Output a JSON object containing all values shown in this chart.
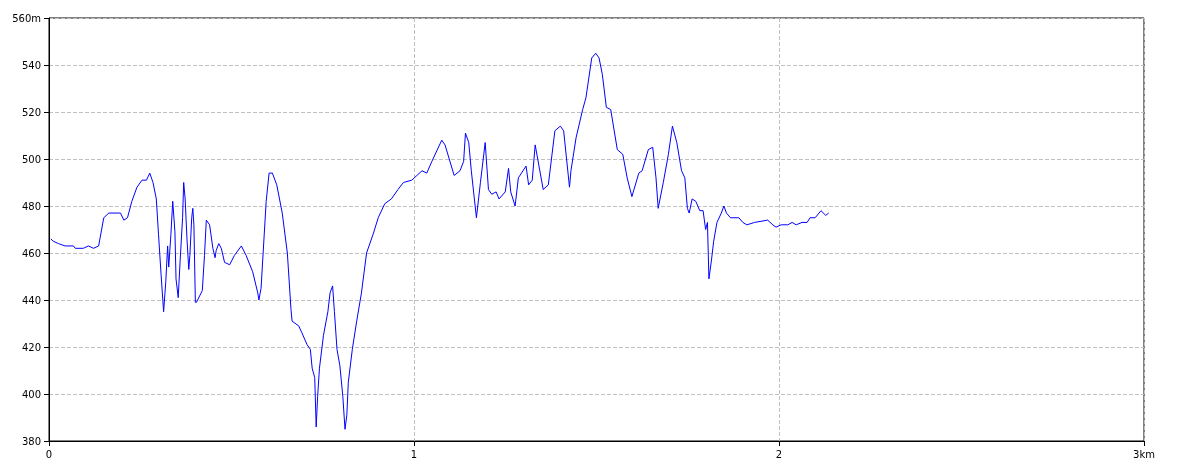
{
  "chart_data": {
    "type": "line",
    "x": [
      0.005,
      0.012,
      0.026,
      0.044,
      0.067,
      0.072,
      0.094,
      0.108,
      0.122,
      0.136,
      0.15,
      0.164,
      0.196,
      0.205,
      0.215,
      0.227,
      0.241,
      0.255,
      0.267,
      0.276,
      0.285,
      0.294,
      0.3,
      0.307,
      0.314,
      0.32,
      0.325,
      0.328,
      0.334,
      0.339,
      0.345,
      0.348,
      0.354,
      0.359,
      0.366,
      0.369,
      0.373,
      0.378,
      0.383,
      0.386,
      0.391,
      0.394,
      0.397,
      0.401,
      0.404,
      0.42,
      0.426,
      0.431,
      0.44,
      0.449,
      0.455,
      0.458,
      0.465,
      0.472,
      0.481,
      0.495,
      0.508,
      0.527,
      0.54,
      0.558,
      0.572,
      0.575,
      0.581,
      0.595,
      0.603,
      0.612,
      0.624,
      0.639,
      0.653,
      0.663,
      0.666,
      0.684,
      0.693,
      0.707,
      0.716,
      0.721,
      0.728,
      0.732,
      0.736,
      0.741,
      0.752,
      0.764,
      0.77,
      0.777,
      0.782,
      0.789,
      0.797,
      0.805,
      0.811,
      0.816,
      0.82,
      0.831,
      0.843,
      0.856,
      0.87,
      0.888,
      0.902,
      0.92,
      0.938,
      0.956,
      0.971,
      0.994,
      1.008,
      1.022,
      1.035,
      1.049,
      1.076,
      1.085,
      1.11,
      1.126,
      1.136,
      1.141,
      1.15,
      1.157,
      1.171,
      1.182,
      1.195,
      1.204,
      1.213,
      1.225,
      1.233,
      1.25,
      1.259,
      1.265,
      1.277,
      1.286,
      1.307,
      1.314,
      1.324,
      1.332,
      1.354,
      1.368,
      1.386,
      1.401,
      1.41,
      1.426,
      1.43,
      1.444,
      1.462,
      1.471,
      1.487,
      1.498,
      1.507,
      1.516,
      1.527,
      1.539,
      1.557,
      1.572,
      1.584,
      1.597,
      1.616,
      1.625,
      1.642,
      1.654,
      1.663,
      1.669,
      1.683,
      1.697,
      1.708,
      1.72,
      1.733,
      1.742,
      1.749,
      1.754,
      1.762,
      1.772,
      1.783,
      1.792,
      1.799,
      1.804,
      1.808,
      1.815,
      1.821,
      1.83,
      1.842,
      1.849,
      1.856,
      1.867,
      1.89,
      1.901,
      1.912,
      1.933,
      1.969,
      1.983,
      1.992,
      2.006,
      2.024,
      2.036,
      2.047,
      2.063,
      2.077,
      2.085,
      2.099,
      2.115,
      2.128,
      2.136
    ],
    "series": [
      {
        "color": "#0000ff",
        "values": [
          466,
          465,
          464,
          463,
          463,
          462,
          462,
          463,
          462,
          463,
          475,
          477,
          477,
          474,
          475,
          482,
          488,
          491,
          491,
          494,
          490,
          483,
          468,
          451,
          435,
          448,
          463,
          454,
          468,
          482,
          469,
          449,
          441,
          456,
          475,
          490,
          483,
          466,
          453,
          459,
          475,
          479,
          472,
          439,
          439,
          444,
          459,
          474,
          472,
          462,
          458,
          461,
          464,
          462,
          456,
          455,
          459,
          463,
          459,
          452,
          443,
          440,
          445,
          482,
          494,
          494,
          489,
          477,
          460,
          436,
          431,
          429,
          426,
          421,
          419,
          411,
          407,
          386,
          399,
          411,
          425,
          435,
          443,
          446,
          435,
          419,
          412,
          399,
          385,
          391,
          405,
          419,
          431,
          443,
          460,
          468,
          475,
          481,
          483,
          487,
          490,
          491,
          493,
          495,
          494,
          499,
          508,
          506,
          493,
          495,
          499,
          511,
          507,
          495,
          475,
          490,
          507,
          487,
          485,
          486,
          483,
          486,
          496,
          486,
          480,
          492,
          497,
          489,
          491,
          506,
          487,
          489,
          512,
          514,
          512,
          488,
          495,
          509,
          521,
          526,
          543,
          545,
          543,
          536,
          522,
          521,
          504,
          502,
          492,
          484,
          494,
          495,
          504,
          505,
          492,
          479,
          490,
          502,
          514,
          507,
          495,
          492,
          479,
          477,
          483,
          482,
          478,
          478,
          470,
          473,
          449,
          457,
          465,
          473,
          477,
          480,
          477,
          475,
          475,
          473,
          472,
          473,
          474,
          472,
          471,
          472,
          472,
          473,
          472,
          473,
          473,
          475,
          475,
          478,
          476,
          477
        ]
      }
    ],
    "xlim": [
      0,
      3
    ],
    "xticks": [
      0,
      1,
      2,
      {
        "value": 3,
        "label": "3km"
      }
    ],
    "ylim": [
      380,
      560
    ],
    "yticks": [
      380,
      400,
      420,
      440,
      460,
      480,
      500,
      520,
      540,
      {
        "value": 560,
        "label": "560m"
      }
    ],
    "grid": true,
    "marker": "none",
    "line_style": "solid"
  }
}
